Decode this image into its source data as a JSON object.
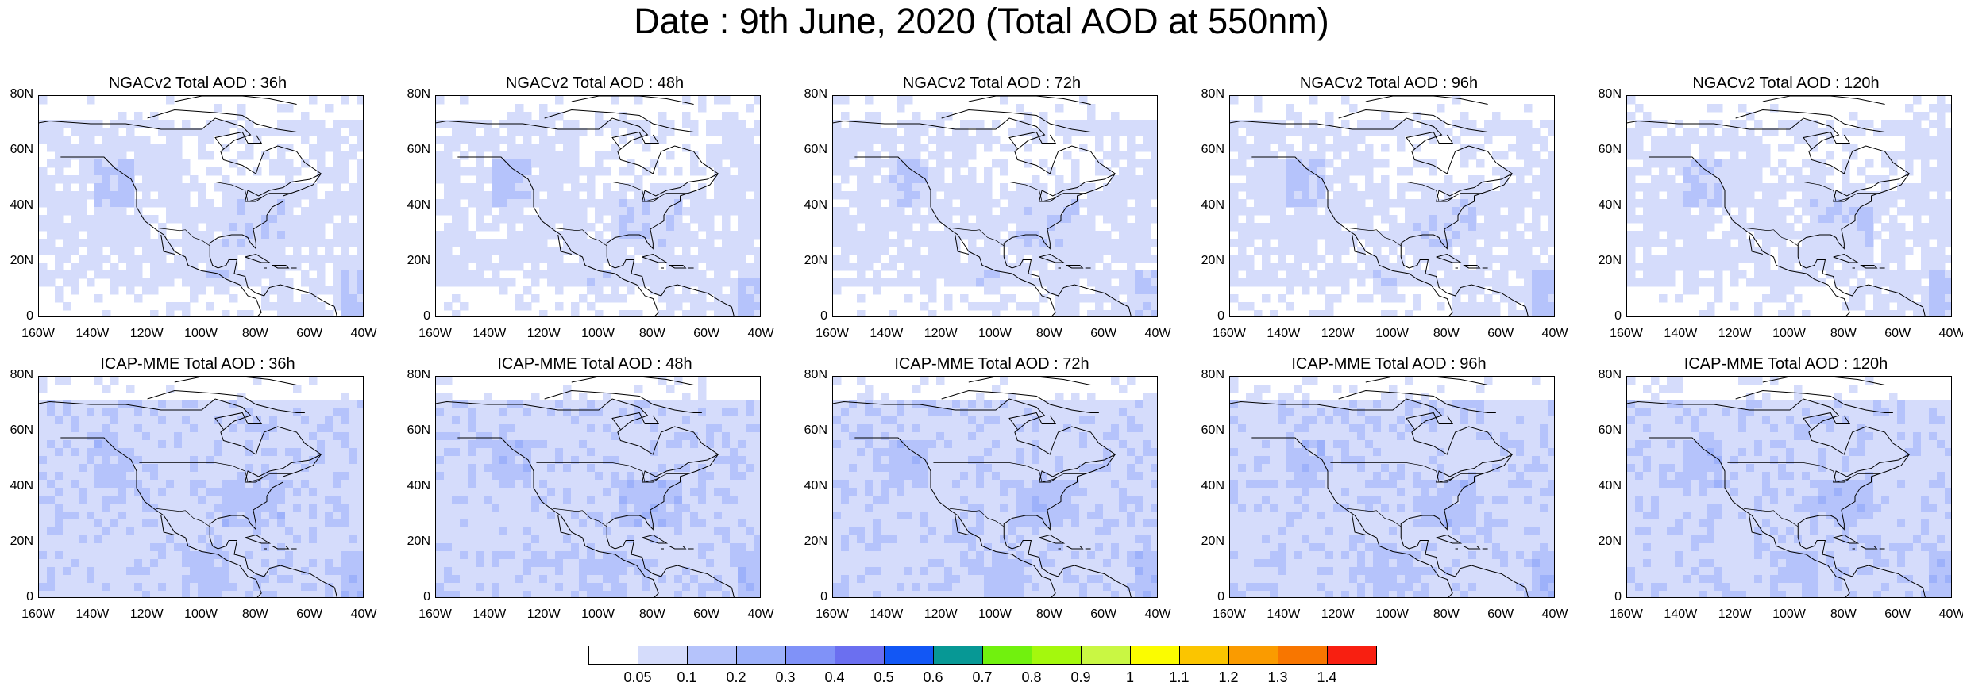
{
  "title": "Date : 9th June, 2020 (Total AOD at 550nm)",
  "chart_data": {
    "type": "heatmap",
    "map_region": {
      "lon_range": [
        -160,
        -40
      ],
      "lat_range": [
        0,
        80
      ]
    },
    "grid_rows": [
      "NGACv2",
      "ICAP-MME"
    ],
    "forecast_hours": [
      "36h",
      "48h",
      "72h",
      "96h",
      "120h"
    ],
    "panels": [
      {
        "title": "NGACv2 Total AOD : 36h"
      },
      {
        "title": "NGACv2 Total AOD : 48h"
      },
      {
        "title": "NGACv2 Total AOD : 72h"
      },
      {
        "title": "NGACv2 Total AOD : 96h"
      },
      {
        "title": "NGACv2 Total AOD : 120h"
      },
      {
        "title": "ICAP-MME Total AOD : 36h"
      },
      {
        "title": "ICAP-MME Total AOD : 48h"
      },
      {
        "title": "ICAP-MME Total AOD : 72h"
      },
      {
        "title": "ICAP-MME Total AOD : 96h"
      },
      {
        "title": "ICAP-MME Total AOD : 120h"
      }
    ],
    "y_ticks": [
      "80N",
      "60N",
      "40N",
      "20N",
      "0"
    ],
    "x_ticks": [
      "160W",
      "140W",
      "120W",
      "100W",
      "80W",
      "60W",
      "40W"
    ],
    "colorbar": {
      "levels": [
        "0.05",
        "0.1",
        "0.2",
        "0.3",
        "0.4",
        "0.5",
        "0.6",
        "0.7",
        "0.8",
        "0.9",
        "1",
        "1.1",
        "1.2",
        "1.3",
        "1.4"
      ],
      "colors": [
        "#ffffff",
        "#d5dcfb",
        "#b5c3fb",
        "#9db1fa",
        "#8092f8",
        "#6b6ff0",
        "#1257f5",
        "#079895",
        "#71f10e",
        "#a4f80d",
        "#c9f743",
        "#fbfc00",
        "#fbc500",
        "#fa9b00",
        "#f87600",
        "#f81f11"
      ]
    }
  }
}
